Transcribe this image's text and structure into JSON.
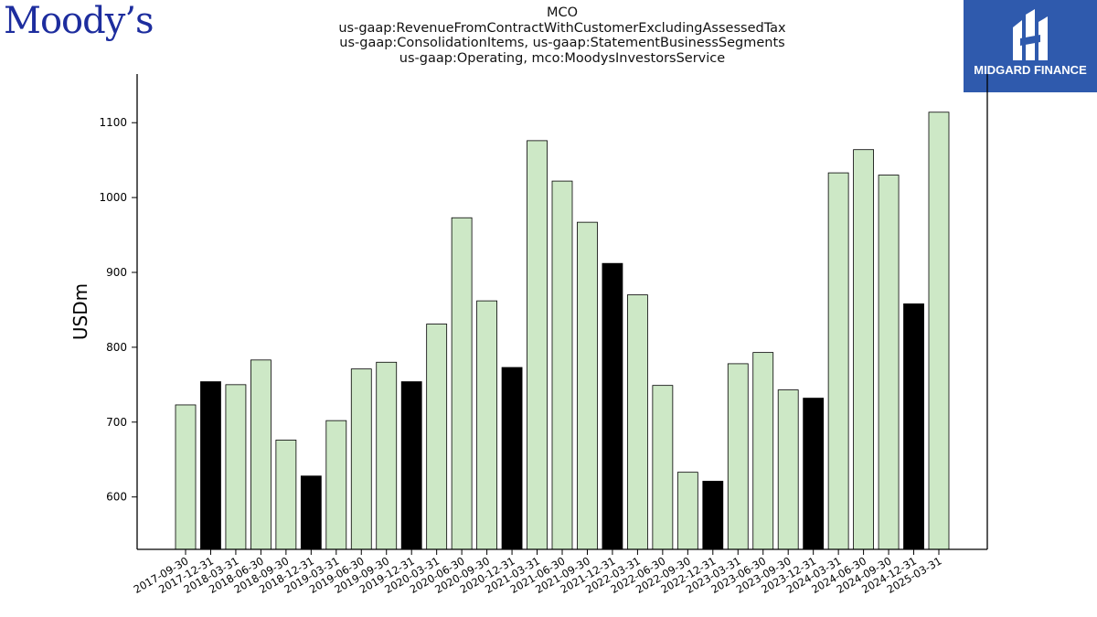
{
  "branding": {
    "left_logo_text": "Moody’s",
    "right_logo_text": "MIDGARD FINANCE",
    "right_logo_bg": "#2f5aad",
    "left_logo_color": "#1d2d9e"
  },
  "colors": {
    "bar_default": "#cde8c6",
    "bar_highlight": "#000000"
  },
  "chart_data": {
    "type": "bar",
    "title_lines": [
      "MCO",
      "us-gaap:RevenueFromContractWithCustomerExcludingAssessedTax",
      "us-gaap:ConsolidationItems, us-gaap:StatementBusinessSegments",
      "us-gaap:Operating, mco:MoodysInvestorsService"
    ],
    "xlabel": "",
    "ylabel": "USDm",
    "ylim": [
      530,
      1165
    ],
    "yticks": [
      600,
      700,
      800,
      900,
      1000,
      1100
    ],
    "grid": false,
    "categories": [
      "2017-09-30",
      "2017-12-31",
      "2018-03-31",
      "2018-06-30",
      "2018-09-30",
      "2018-12-31",
      "2019-03-31",
      "2019-06-30",
      "2019-09-30",
      "2019-12-31",
      "2020-03-31",
      "2020-06-30",
      "2020-09-30",
      "2020-12-31",
      "2021-03-31",
      "2021-06-30",
      "2021-09-30",
      "2021-12-31",
      "2022-03-31",
      "2022-06-30",
      "2022-09-30",
      "2022-12-31",
      "2023-03-31",
      "2023-06-30",
      "2023-09-30",
      "2023-12-31",
      "2024-03-31",
      "2024-06-30",
      "2024-09-30",
      "2024-12-31",
      "2025-03-31"
    ],
    "values": [
      723,
      754,
      750,
      783,
      676,
      628,
      702,
      771,
      780,
      754,
      831,
      973,
      862,
      773,
      1076,
      1022,
      967,
      912,
      870,
      749,
      633,
      621,
      778,
      793,
      743,
      732,
      1033,
      1064,
      1030,
      858,
      1114
    ],
    "highlighted": [
      false,
      true,
      false,
      false,
      false,
      true,
      false,
      false,
      false,
      true,
      false,
      false,
      false,
      true,
      false,
      false,
      false,
      true,
      false,
      false,
      false,
      true,
      false,
      false,
      false,
      true,
      false,
      false,
      false,
      true,
      false
    ]
  }
}
